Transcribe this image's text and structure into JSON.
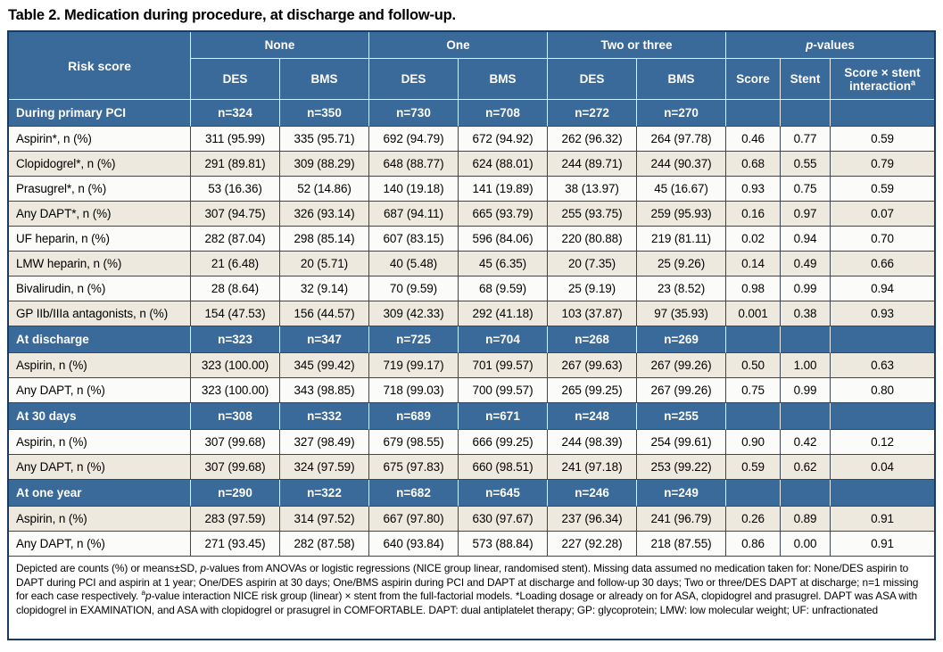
{
  "page": {
    "title": "Table 2. Medication during procedure, at discharge and follow-up."
  },
  "colors": {
    "header_blue": "#3A6A99",
    "outer_border": "#1C3A5E",
    "grid_line": "#3D4653",
    "row_beige": "#EDE9DE",
    "row_white": "#FBFBF9"
  },
  "table": {
    "risk_score_label": "Risk score",
    "groups": [
      {
        "label": "None",
        "subs": [
          "DES",
          "BMS"
        ]
      },
      {
        "label": "One",
        "subs": [
          "DES",
          "BMS"
        ]
      },
      {
        "label": "Two or three",
        "subs": [
          "DES",
          "BMS"
        ]
      }
    ],
    "pvalues": {
      "italic": "p",
      "rest": "-values",
      "cols": [
        "Score",
        "Stent"
      ],
      "interaction": {
        "line1": "Score × stent",
        "line2": "interaction",
        "sup": "a"
      }
    },
    "sections": [
      {
        "header": {
          "label": "During primary PCI",
          "ns": [
            "n=324",
            "n=350",
            "n=730",
            "n=708",
            "n=272",
            "n=270"
          ]
        },
        "rows": [
          {
            "label": "Aspirin*, n (%)",
            "values": [
              "311 (95.99)",
              "335 (95.71)",
              "692 (94.79)",
              "672 (94.92)",
              "262 (96.32)",
              "264 (97.78)",
              "0.46",
              "0.77",
              "0.59"
            ]
          },
          {
            "label": "Clopidogrel*, n (%)",
            "values": [
              "291 (89.81)",
              "309 (88.29)",
              "648 (88.77)",
              "624 (88.01)",
              "244 (89.71)",
              "244 (90.37)",
              "0.68",
              "0.55",
              "0.79"
            ]
          },
          {
            "label": "Prasugrel*, n (%)",
            "values": [
              "53 (16.36)",
              "52 (14.86)",
              "140 (19.18)",
              "141 (19.89)",
              "38 (13.97)",
              "45 (16.67)",
              "0.93",
              "0.75",
              "0.59"
            ]
          },
          {
            "label": "Any DAPT*, n (%)",
            "values": [
              "307 (94.75)",
              "326 (93.14)",
              "687 (94.11)",
              "665 (93.79)",
              "255 (93.75)",
              "259 (95.93)",
              "0.16",
              "0.97",
              "0.07"
            ]
          },
          {
            "label": "UF heparin, n (%)",
            "values": [
              "282 (87.04)",
              "298 (85.14)",
              "607 (83.15)",
              "596 (84.06)",
              "220 (80.88)",
              "219 (81.11)",
              "0.02",
              "0.94",
              "0.70"
            ]
          },
          {
            "label": "LMW heparin, n (%)",
            "values": [
              "21 (6.48)",
              "20 (5.71)",
              "40 (5.48)",
              "45 (6.35)",
              "20 (7.35)",
              "25 (9.26)",
              "0.14",
              "0.49",
              "0.66"
            ]
          },
          {
            "label": "Bivalirudin, n (%)",
            "values": [
              "28 (8.64)",
              "32 (9.14)",
              "70 (9.59)",
              "68 (9.59)",
              "25 (9.19)",
              "23 (8.52)",
              "0.98",
              "0.99",
              "0.94"
            ]
          },
          {
            "label": "GP IIb/IIIa antagonists, n (%)",
            "values": [
              "154 (47.53)",
              "156 (44.57)",
              "309 (42.33)",
              "292 (41.18)",
              "103 (37.87)",
              "97 (35.93)",
              "0.001",
              "0.38",
              "0.93"
            ]
          }
        ]
      },
      {
        "header": {
          "label": "At discharge",
          "ns": [
            "n=323",
            "n=347",
            "n=725",
            "n=704",
            "n=268",
            "n=269"
          ]
        },
        "rows": [
          {
            "label": "Aspirin, n (%)",
            "values": [
              "323 (100.00)",
              "345 (99.42)",
              "719 (99.17)",
              "701 (99.57)",
              "267 (99.63)",
              "267 (99.26)",
              "0.50",
              "1.00",
              "0.63"
            ]
          },
          {
            "label": "Any DAPT, n (%)",
            "values": [
              "323 (100.00)",
              "343 (98.85)",
              "718 (99.03)",
              "700 (99.57)",
              "265 (99.25)",
              "267 (99.26)",
              "0.75",
              "0.99",
              "0.80"
            ]
          }
        ]
      },
      {
        "header": {
          "label": "At 30 days",
          "ns": [
            "n=308",
            "n=332",
            "n=689",
            "n=671",
            "n=248",
            "n=255"
          ]
        },
        "rows": [
          {
            "label": "Aspirin, n (%)",
            "values": [
              "307 (99.68)",
              "327 (98.49)",
              "679 (98.55)",
              "666 (99.25)",
              "244 (98.39)",
              "254 (99.61)",
              "0.90",
              "0.42",
              "0.12"
            ]
          },
          {
            "label": "Any DAPT, n (%)",
            "values": [
              "307 (99.68)",
              "324 (97.59)",
              "675 (97.83)",
              "660 (98.51)",
              "241 (97.18)",
              "253 (99.22)",
              "0.59",
              "0.62",
              "0.04"
            ]
          }
        ]
      },
      {
        "header": {
          "label": "At one year",
          "ns": [
            "n=290",
            "n=322",
            "n=682",
            "n=645",
            "n=246",
            "n=249"
          ]
        },
        "rows": [
          {
            "label": "Aspirin, n (%)",
            "values": [
              "283 (97.59)",
              "314 (97.52)",
              "667 (97.80)",
              "630 (97.67)",
              "237 (96.34)",
              "241 (96.79)",
              "0.26",
              "0.89",
              "0.91"
            ]
          },
          {
            "label": "Any DAPT, n (%)",
            "values": [
              "271 (93.45)",
              "282 (87.58)",
              "640 (93.84)",
              "573 (88.84)",
              "227 (92.28)",
              "218 (87.55)",
              "0.86",
              "0.00",
              "0.91"
            ]
          }
        ]
      }
    ],
    "footnote_segments": [
      {
        "text": "Depicted are counts (%) or means±SD, "
      },
      {
        "text": "p",
        "style": "italic"
      },
      {
        "text": "-values from ANOVAs or logistic regressions (NICE group linear, randomised stent). Missing data assumed no medication taken for: None/DES aspirin to DAPT during PCI and aspirin at 1 year; One/DES aspirin at 30 days; One/BMS aspirin during PCI and DAPT at discharge and follow-up 30 days; Two or three/DES DAPT at discharge; n=1 missing for each case respectively. "
      },
      {
        "text": "a",
        "style": "sup"
      },
      {
        "text": "p",
        "style": "italic"
      },
      {
        "text": "-value interaction NICE risk group (linear) × stent from the full-factorial models. *Loading dosage or already on for ASA, clopidogrel and prasugrel. DAPT was ASA with clopidogrel in EXAMINATION, and ASA with clopidogrel or prasugrel in COMFORTABLE. DAPT: dual antiplatelet therapy; GP: glycoprotein; LMW: low molecular weight; UF: unfractionated"
      }
    ]
  }
}
